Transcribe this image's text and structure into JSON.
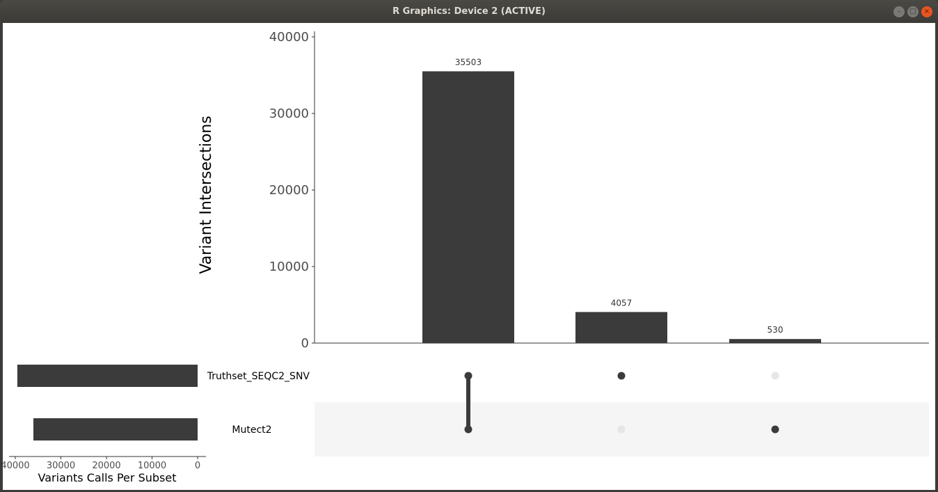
{
  "window": {
    "title": "R Graphics: Device 2 (ACTIVE)"
  },
  "chart_data": {
    "type": "upset",
    "intersections": {
      "ylabel": "Variant Intersections",
      "ylim": [
        0,
        40000
      ],
      "yticks": [
        "0",
        "10000",
        "20000",
        "30000",
        "40000"
      ],
      "values": [
        35503,
        4057,
        530
      ],
      "labels": [
        "35503",
        "4057",
        "530"
      ],
      "membership": [
        [
          "Truthset_SEQC2_SNV",
          "Mutect2"
        ],
        [
          "Truthset_SEQC2_SNV"
        ],
        [
          "Mutect2"
        ]
      ]
    },
    "sets": {
      "names": [
        "Truthset_SEQC2_SNV",
        "Mutect2"
      ],
      "sizes": [
        39560,
        36033
      ],
      "xlabel": "Variants Calls Per Subset",
      "xlim": [
        40000,
        0
      ],
      "xticks": [
        "40000",
        "30000",
        "20000",
        "10000",
        "0"
      ]
    },
    "colors": {
      "bar": "#3b3b3b",
      "dot_inactive": "#e6e6e6",
      "band": "#f5f5f5"
    }
  }
}
